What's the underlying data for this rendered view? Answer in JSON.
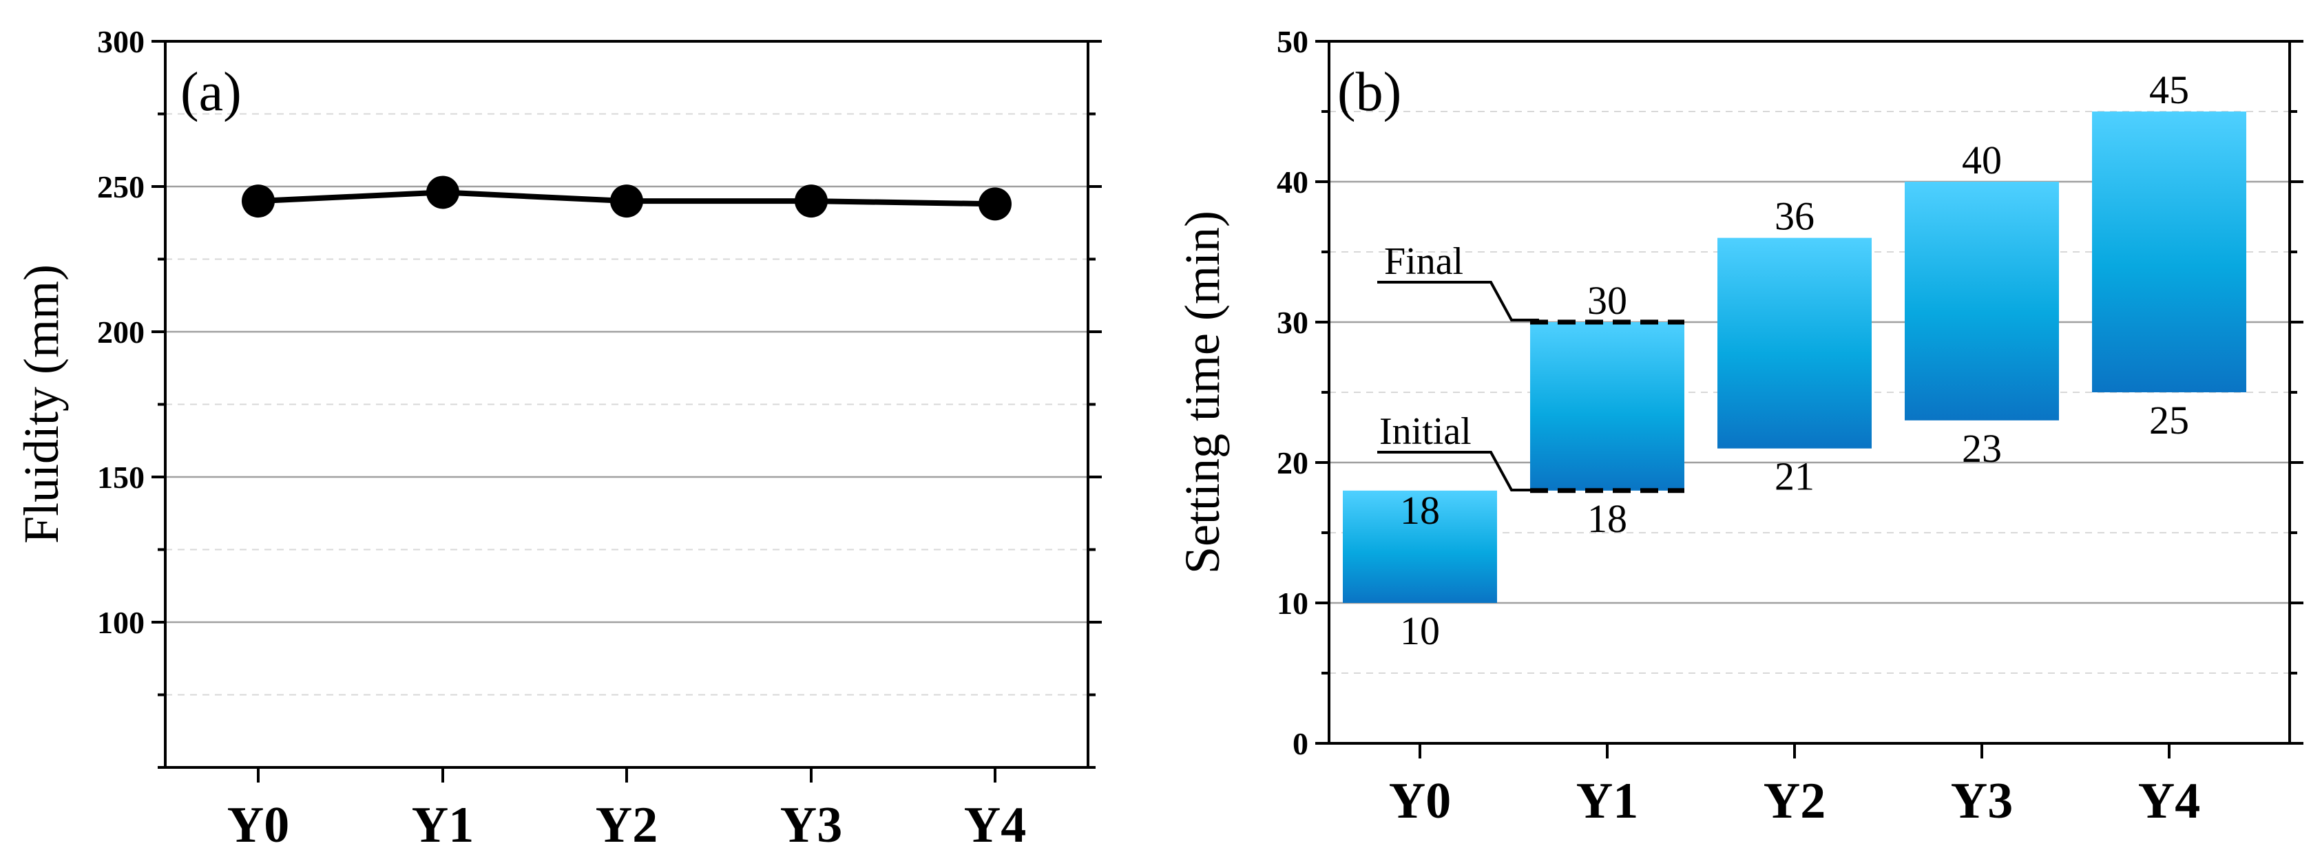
{
  "chart_data": [
    {
      "type": "line",
      "panel_label": "(a)",
      "title": "",
      "xlabel": "",
      "ylabel": "Fluidity (mm)",
      "categories": [
        "Y0",
        "Y1",
        "Y2",
        "Y3",
        "Y4"
      ],
      "series": [
        {
          "name": "Fluidity",
          "values": [
            245,
            248,
            245,
            245,
            244
          ]
        }
      ],
      "ylim": [
        50,
        300
      ],
      "yticks": [
        "100",
        "150",
        "200",
        "250",
        "300"
      ],
      "grid": true
    },
    {
      "type": "floating-bar",
      "panel_label": "(b)",
      "title": "",
      "xlabel": "",
      "ylabel": "Setting time (min)",
      "categories": [
        "Y0",
        "Y1",
        "Y2",
        "Y3",
        "Y4"
      ],
      "initial": [
        10,
        18,
        21,
        23,
        25
      ],
      "final": [
        18,
        30,
        36,
        40,
        45
      ],
      "initial_labels": [
        "10",
        "18",
        "21",
        "23",
        "25"
      ],
      "final_labels": [
        "18",
        "30",
        "36",
        "40",
        "45"
      ],
      "annotations": {
        "final": "Final",
        "initial": "Initial"
      },
      "ylim": [
        0,
        50
      ],
      "yticks": [
        "0",
        "10",
        "20",
        "30",
        "40",
        "50"
      ],
      "grid": true
    }
  ],
  "colors": {
    "axis": "#000000",
    "grid_major": "#a0a0a0",
    "grid_minor": "#d8d8d8",
    "line": "#000000",
    "bar_top": "#4fd0ff",
    "bar_mid": "#08a8e0",
    "bar_bottom": "#0a74c4"
  }
}
